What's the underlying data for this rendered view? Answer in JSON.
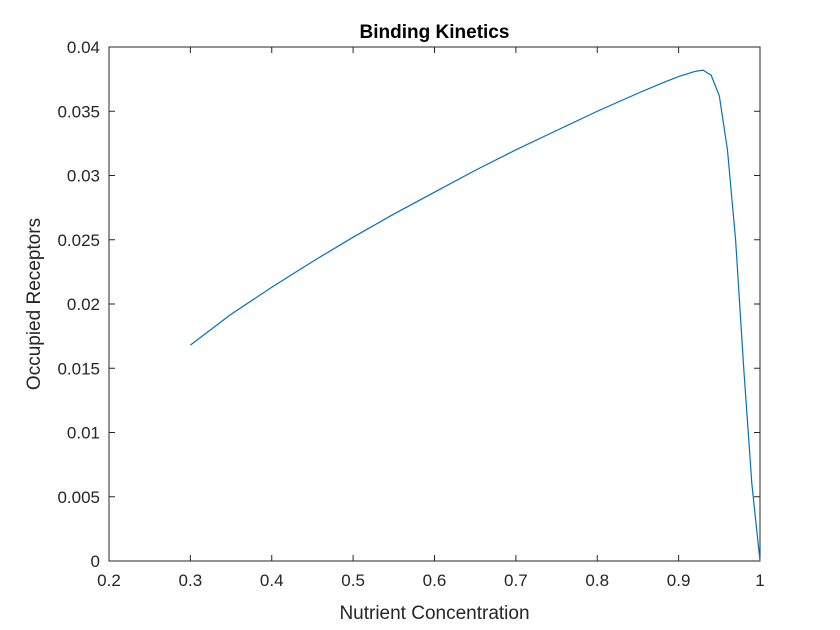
{
  "chart_data": {
    "type": "line",
    "title": "Binding Kinetics",
    "xlabel": "Nutrient Concentration",
    "ylabel": "Occupied Receptors",
    "xlim": [
      0.2,
      1.0
    ],
    "ylim": [
      0,
      0.04
    ],
    "xticks": [
      "0.2",
      "0.3",
      "0.4",
      "0.5",
      "0.6",
      "0.7",
      "0.8",
      "0.9",
      "1"
    ],
    "yticks": [
      "0",
      "0.005",
      "0.01",
      "0.015",
      "0.02",
      "0.025",
      "0.03",
      "0.035",
      "0.04"
    ],
    "grid": false,
    "line_color": "#0072BD",
    "series": [
      {
        "x": [
          0.3,
          0.35,
          0.4,
          0.45,
          0.5,
          0.55,
          0.6,
          0.65,
          0.7,
          0.75,
          0.8,
          0.85,
          0.88,
          0.9,
          0.92,
          0.93,
          0.94,
          0.95,
          0.96,
          0.97,
          0.98,
          0.99,
          1.0
        ],
        "y": [
          0.0168,
          0.0192,
          0.0213,
          0.0233,
          0.0252,
          0.027,
          0.0287,
          0.0304,
          0.032,
          0.0335,
          0.035,
          0.0364,
          0.0372,
          0.0377,
          0.0381,
          0.0382,
          0.0378,
          0.0362,
          0.032,
          0.025,
          0.015,
          0.006,
          0.0
        ]
      }
    ]
  }
}
